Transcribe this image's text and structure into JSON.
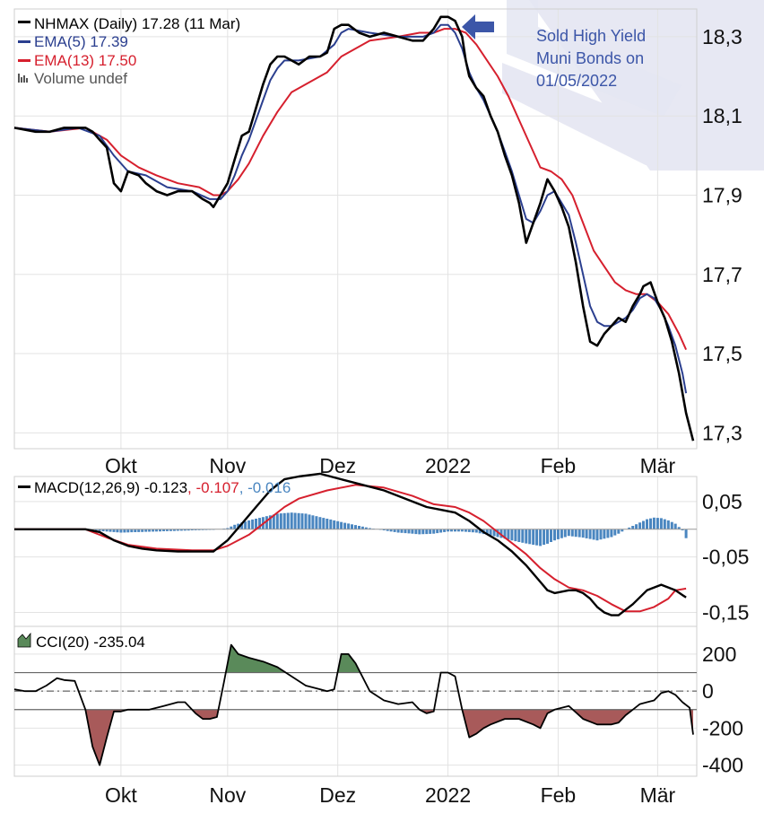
{
  "chart_data": [
    {
      "type": "line",
      "panel": "price",
      "y_ticks": [
        "18,3",
        "18,1",
        "17,9",
        "17,7",
        "17,5",
        "17,3"
      ],
      "y_tick_values": [
        18.3,
        18.1,
        17.9,
        17.7,
        17.5,
        17.3
      ],
      "ylim": [
        17.26,
        18.37
      ],
      "x_labels": [
        "Okt",
        "Nov",
        "Dez",
        "2022",
        "Feb",
        "Mär"
      ],
      "x_label_days": [
        30,
        60,
        91,
        122,
        153,
        181
      ],
      "xlim": [
        0,
        192
      ],
      "grid": true,
      "legend": [
        {
          "text": "NHMAX (Daily) 17.28 (11 Mar)",
          "color": "#000000"
        },
        {
          "text": "EMA(5) 17.39",
          "color": "#2b3f8f"
        },
        {
          "text": "EMA(13) 17.50",
          "color": "#d6202e"
        },
        {
          "text": "Volume undef",
          "color": "#555555"
        }
      ],
      "annotation": {
        "lines": [
          "Sold High Yield",
          "Muni Bonds on",
          "01/05/2022"
        ],
        "color": "#3c56a8"
      },
      "series": [
        {
          "name": "NHMAX",
          "color": "#000000",
          "x": [
            0,
            6,
            10,
            14,
            18,
            20,
            22,
            24,
            26,
            28,
            30,
            32,
            35,
            37,
            40,
            43,
            46,
            50,
            53,
            55,
            56,
            58,
            60,
            62,
            64,
            66,
            68,
            70,
            72,
            74,
            76,
            78,
            80,
            83,
            86,
            88,
            90,
            92,
            94,
            97,
            100,
            104,
            108,
            112,
            115,
            118,
            120,
            122,
            124,
            126,
            127,
            128,
            130,
            132,
            134,
            136,
            138,
            140,
            142,
            144,
            146,
            148,
            150,
            152,
            154,
            156,
            158,
            160,
            162,
            164,
            166,
            168,
            170,
            172,
            174,
            176,
            177,
            179,
            181,
            183,
            185,
            187,
            189,
            191
          ],
          "y": [
            18.07,
            18.06,
            18.06,
            18.07,
            18.07,
            18.07,
            18.06,
            18.04,
            18.02,
            17.93,
            17.91,
            17.96,
            17.95,
            17.93,
            17.91,
            17.9,
            17.91,
            17.91,
            17.89,
            17.88,
            17.87,
            17.9,
            17.93,
            17.99,
            18.05,
            18.06,
            18.12,
            18.18,
            18.23,
            18.25,
            18.25,
            18.24,
            18.23,
            18.25,
            18.25,
            18.26,
            18.32,
            18.33,
            18.33,
            18.31,
            18.3,
            18.31,
            18.3,
            18.29,
            18.29,
            18.32,
            18.35,
            18.35,
            18.34,
            18.3,
            18.24,
            18.2,
            18.17,
            18.15,
            18.1,
            18.06,
            18.0,
            17.95,
            17.88,
            17.78,
            17.83,
            17.88,
            17.94,
            17.91,
            17.87,
            17.82,
            17.73,
            17.62,
            17.53,
            17.52,
            17.55,
            17.57,
            17.59,
            17.58,
            17.62,
            17.65,
            17.67,
            17.68,
            17.63,
            17.59,
            17.53,
            17.45,
            17.35,
            17.28
          ]
        },
        {
          "name": "EMA(5)",
          "color": "#2b3f8f",
          "x": [
            0,
            10,
            18,
            24,
            28,
            32,
            37,
            43,
            50,
            55,
            58,
            60,
            62,
            64,
            66,
            68,
            70,
            72,
            74,
            76,
            80,
            86,
            90,
            92,
            94,
            100,
            108,
            115,
            118,
            120,
            122,
            124,
            126,
            128,
            130,
            132,
            134,
            136,
            138,
            140,
            142,
            144,
            146,
            148,
            150,
            152,
            154,
            156,
            158,
            160,
            162,
            164,
            166,
            168,
            170,
            172,
            174,
            176,
            178,
            180,
            182,
            184,
            186,
            188,
            189
          ],
          "y": [
            18.07,
            18.06,
            18.07,
            18.05,
            18.0,
            17.96,
            17.95,
            17.92,
            17.91,
            17.89,
            17.89,
            17.91,
            17.95,
            18.0,
            18.04,
            18.09,
            18.14,
            18.19,
            18.22,
            18.24,
            18.24,
            18.25,
            18.28,
            18.31,
            18.32,
            18.31,
            18.3,
            18.3,
            18.31,
            18.33,
            18.33,
            18.31,
            18.27,
            18.21,
            18.17,
            18.14,
            18.1,
            18.06,
            18.01,
            17.96,
            17.9,
            17.84,
            17.83,
            17.86,
            17.9,
            17.91,
            17.88,
            17.85,
            17.78,
            17.7,
            17.62,
            17.58,
            17.57,
            17.57,
            17.58,
            17.59,
            17.61,
            17.64,
            17.65,
            17.64,
            17.61,
            17.57,
            17.52,
            17.45,
            17.4
          ]
        },
        {
          "name": "EMA(13)",
          "color": "#d6202e",
          "x": [
            0,
            10,
            20,
            26,
            30,
            35,
            40,
            46,
            52,
            56,
            58,
            60,
            63,
            66,
            70,
            74,
            78,
            84,
            88,
            92,
            96,
            100,
            108,
            114,
            118,
            121,
            124,
            127,
            130,
            133,
            136,
            139,
            142,
            145,
            148,
            151,
            154,
            157,
            160,
            163,
            166,
            169,
            172,
            175,
            178,
            181,
            184,
            187,
            189
          ],
          "y": [
            18.07,
            18.06,
            18.07,
            18.04,
            18.0,
            17.97,
            17.95,
            17.93,
            17.92,
            17.9,
            17.9,
            17.91,
            17.94,
            17.98,
            18.05,
            18.11,
            18.16,
            18.19,
            18.21,
            18.25,
            18.27,
            18.29,
            18.3,
            18.31,
            18.31,
            18.32,
            18.32,
            18.31,
            18.28,
            18.24,
            18.2,
            18.15,
            18.09,
            18.03,
            17.97,
            17.96,
            17.94,
            17.9,
            17.83,
            17.76,
            17.72,
            17.68,
            17.66,
            17.65,
            17.65,
            17.63,
            17.6,
            17.55,
            17.51
          ]
        }
      ]
    },
    {
      "type": "line",
      "panel": "macd",
      "legend": [
        {
          "text": "MACD(12,26,9) -0.123",
          "color": "#000000"
        },
        {
          "text": ", -0.107",
          "color": "#d6202e"
        },
        {
          "text": ", -0.016",
          "color": "#4a86c0"
        }
      ],
      "y_ticks": [
        "0,05",
        "-0,05",
        "-0,15"
      ],
      "y_tick_values": [
        0.05,
        -0.05,
        -0.15
      ],
      "ylim": [
        -0.175,
        0.095
      ],
      "xlim": [
        0,
        192
      ],
      "series": [
        {
          "name": "MACD",
          "color": "#000000",
          "x": [
            0,
            10,
            20,
            24,
            28,
            32,
            36,
            40,
            46,
            52,
            56,
            60,
            64,
            68,
            72,
            76,
            80,
            86,
            92,
            98,
            104,
            110,
            116,
            120,
            124,
            128,
            132,
            136,
            140,
            144,
            148,
            150,
            152,
            156,
            158,
            160,
            162,
            164,
            166,
            168,
            170,
            174,
            178,
            182,
            186,
            189
          ],
          "y": [
            0.0,
            0.0,
            0.0,
            -0.005,
            -0.02,
            -0.03,
            -0.035,
            -0.038,
            -0.04,
            -0.04,
            -0.04,
            -0.02,
            0.01,
            0.04,
            0.07,
            0.09,
            0.095,
            0.1,
            0.09,
            0.08,
            0.07,
            0.055,
            0.04,
            0.035,
            0.03,
            0.015,
            -0.005,
            -0.02,
            -0.04,
            -0.065,
            -0.095,
            -0.11,
            -0.115,
            -0.11,
            -0.11,
            -0.115,
            -0.125,
            -0.14,
            -0.15,
            -0.155,
            -0.155,
            -0.135,
            -0.11,
            -0.1,
            -0.11,
            -0.123
          ]
        },
        {
          "name": "Signal",
          "color": "#d6202e",
          "x": [
            0,
            20,
            26,
            32,
            40,
            50,
            56,
            60,
            66,
            72,
            76,
            80,
            88,
            96,
            104,
            112,
            118,
            124,
            128,
            132,
            136,
            140,
            144,
            148,
            152,
            156,
            160,
            164,
            168,
            172,
            176,
            180,
            184,
            186,
            189
          ],
          "y": [
            0.0,
            0.0,
            -0.015,
            -0.028,
            -0.035,
            -0.038,
            -0.038,
            -0.03,
            -0.01,
            0.02,
            0.04,
            0.055,
            0.07,
            0.08,
            0.075,
            0.06,
            0.045,
            0.04,
            0.03,
            0.015,
            -0.005,
            -0.025,
            -0.045,
            -0.07,
            -0.09,
            -0.105,
            -0.11,
            -0.12,
            -0.135,
            -0.148,
            -0.148,
            -0.14,
            -0.125,
            -0.11,
            -0.107
          ]
        }
      ],
      "histogram": {
        "name": "Histogram",
        "color": "#4a86c0",
        "x": [
          0,
          20,
          24,
          30,
          40,
          50,
          56,
          60,
          62,
          66,
          70,
          74,
          78,
          82,
          86,
          92,
          100,
          108,
          114,
          118,
          122,
          126,
          130,
          134,
          138,
          142,
          146,
          148,
          150,
          152,
          154,
          156,
          160,
          164,
          168,
          170,
          172,
          174,
          176,
          178,
          180,
          182,
          184,
          186,
          188,
          189
        ],
        "y": [
          0.0,
          0.0,
          -0.003,
          -0.006,
          -0.004,
          -0.002,
          -0.001,
          0.002,
          0.008,
          0.016,
          0.022,
          0.028,
          0.03,
          0.028,
          0.022,
          0.013,
          0.002,
          -0.006,
          -0.009,
          -0.008,
          -0.004,
          -0.004,
          -0.006,
          -0.011,
          -0.017,
          -0.023,
          -0.028,
          -0.03,
          -0.026,
          -0.02,
          -0.016,
          -0.012,
          -0.015,
          -0.02,
          -0.014,
          -0.008,
          0.0,
          0.006,
          0.012,
          0.018,
          0.021,
          0.02,
          0.016,
          0.01,
          -0.002,
          -0.016
        ]
      }
    },
    {
      "type": "area",
      "panel": "cci",
      "legend": [
        {
          "text": "CCI(20) -235.04",
          "color": "#000000"
        }
      ],
      "y_ticks": [
        "200",
        "0",
        "-200",
        "-400"
      ],
      "y_tick_values": [
        200,
        0,
        -200,
        -400
      ],
      "ylim": [
        -460,
        350
      ],
      "xlim": [
        0,
        192
      ],
      "reference_levels": [
        100,
        0,
        -100
      ],
      "positive_fill": "#5a8a5a",
      "negative_fill": "#a85a5a",
      "series": [
        {
          "name": "CCI(20)",
          "color": "#000000",
          "x": [
            0,
            3,
            6,
            9,
            12,
            14,
            17,
            20,
            22,
            24,
            26,
            28,
            30,
            32,
            34,
            38,
            42,
            46,
            48,
            51,
            53,
            55,
            57,
            59,
            61,
            63,
            66,
            70,
            74,
            78,
            82,
            86,
            88,
            90,
            92,
            94,
            96,
            100,
            104,
            108,
            112,
            114,
            116,
            118,
            120,
            122,
            124,
            126,
            128,
            130,
            132,
            134,
            138,
            142,
            146,
            148,
            150,
            152,
            156,
            160,
            164,
            168,
            170,
            172,
            174,
            176,
            178,
            180,
            182,
            184,
            186,
            188,
            190,
            191
          ],
          "y": [
            10,
            0,
            0,
            30,
            70,
            60,
            55,
            -100,
            -300,
            -400,
            -250,
            -110,
            -110,
            -100,
            -100,
            -100,
            -80,
            -60,
            -60,
            -120,
            -150,
            -150,
            -140,
            50,
            250,
            200,
            180,
            160,
            130,
            80,
            30,
            10,
            0,
            10,
            200,
            200,
            150,
            0,
            -50,
            -70,
            -60,
            -100,
            -120,
            -110,
            100,
            100,
            80,
            -100,
            -250,
            -230,
            -200,
            -180,
            -150,
            -150,
            -180,
            -200,
            -120,
            -100,
            -80,
            -150,
            -180,
            -180,
            -170,
            -130,
            -100,
            -70,
            -60,
            -50,
            -10,
            0,
            -20,
            -60,
            -90,
            -235
          ]
        }
      ]
    }
  ],
  "x_axis_labels": [
    "Okt",
    "Nov",
    "Dez",
    "2022",
    "Feb",
    "Mär"
  ]
}
